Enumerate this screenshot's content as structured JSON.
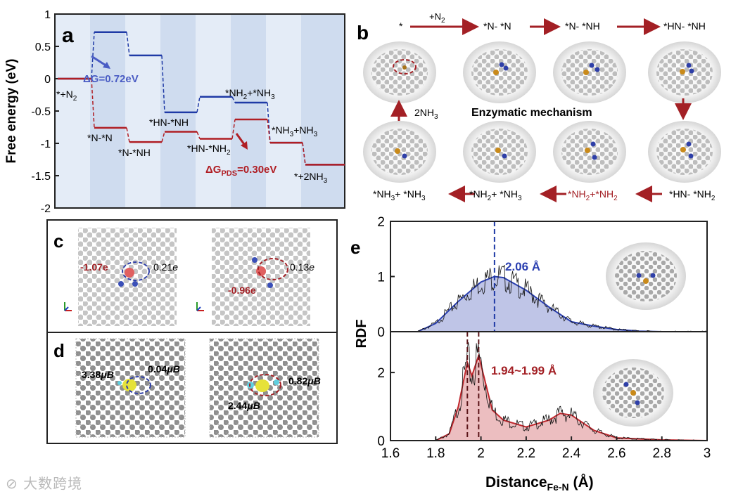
{
  "watermark": "⊘ 大数跨境",
  "panel_a": {
    "label": "a",
    "ylabel": "Free energy (eV)",
    "yticks": [
      "1",
      "0.5",
      "0",
      "-0.5",
      "-1",
      "-1.5",
      "-2"
    ],
    "annotations": {
      "dG_blue": "ΔG=0.72eV",
      "dG_red_main": "ΔG",
      "dG_red_sub": "PDS",
      "dG_red_rest": "=0.30eV"
    },
    "state_labels": {
      "start": "*+N",
      "start_sub": "2",
      "nn": "*N-*N",
      "nnh": "*N-*NH",
      "hnnh": "*HN-*NH",
      "hnnh2": "*HN-*NH",
      "hnnh2_sub": "2",
      "nh2nh3": "*NH",
      "nh2nh3_sub": "2",
      "nh2nh3_rest": "+*NH",
      "nh2nh3_sub2": "3",
      "nh3nh3": "*NH",
      "nh3nh3_sub": "3",
      "nh3nh3_rest": "+NH",
      "nh3nh3_sub2": "3",
      "end": "*+2NH",
      "end_sub": "3"
    },
    "chart_data": {
      "type": "line",
      "title": "",
      "xlabel": "",
      "ylabel": "Free energy (eV)",
      "ylim": [
        -2,
        1
      ],
      "series": [
        {
          "name": "dissociative pathway (blue)",
          "color": "#1f3aa6",
          "values": [
            0,
            0.72,
            0.36,
            -0.52,
            -0.28,
            -0.37,
            -0.99,
            -1.33
          ]
        },
        {
          "name": "enzymatic pathway (red)",
          "color": "#b01e24",
          "values": [
            0,
            -0.76,
            -0.98,
            -0.82,
            -0.93,
            -0.63,
            -0.99,
            -1.33
          ]
        }
      ]
    }
  },
  "panel_b": {
    "label": "b",
    "top_states": [
      "*",
      "*N- *N",
      "*N- *NH",
      "*HN- *NH"
    ],
    "n2_arrow": "+N",
    "n2_sub": "2",
    "release": "2NH",
    "release_sub": "3",
    "mechanism": "Enzymatic mechanism",
    "bottom_states": {
      "s1a": "*NH",
      "s1a_sub": "3",
      "s1b": "+ *NH",
      "s1b_sub": "3",
      "s2a": "*NH",
      "s2a_sub": "2",
      "s2b": "+ *NH",
      "s2b_sub": "3",
      "s3a": "*NH",
      "s3a_sub": "2",
      "s3b": "+*NH",
      "s3b_sub": "2",
      "s4a": "*HN- *NH",
      "s4a_sub": "2"
    }
  },
  "panel_c": {
    "label": "c",
    "left_q1": "-1.07e",
    "left_q2": "0.21",
    "right_q1": "0.13",
    "right_q2": "-0.96e",
    "e_unit": "e"
  },
  "panel_d": {
    "label": "d",
    "left_m1": "3.38",
    "left_m2": "0.04",
    "right_m1": "0.82",
    "right_m2": "2.44",
    "mu_unit": "μB"
  },
  "panel_e": {
    "label": "e",
    "ylabel": "RDF",
    "xlabel_main": "Distance",
    "xlabel_sub": "Fe-N",
    "xlabel_unit": " (Å)",
    "top_peak_label": "2.06 Å",
    "bottom_peak_label": "1.94~1.99 Å",
    "top_yticks": [
      "0",
      "1",
      "2"
    ],
    "bottom_yticks": [
      "0",
      "2"
    ],
    "xticks": [
      "1.6",
      "1.8",
      "2",
      "2.2",
      "2.4",
      "2.6",
      "2.8",
      "3"
    ],
    "chart_data": [
      {
        "type": "area",
        "name": "Fe-N RDF (dissociative)",
        "color": "#2a3fb0",
        "xlim": [
          1.6,
          3.0
        ],
        "ylim": [
          0,
          2
        ],
        "x": [
          1.72,
          1.8,
          1.9,
          2.0,
          2.06,
          2.1,
          2.2,
          2.3,
          2.4,
          2.5,
          2.6,
          2.7,
          2.8,
          3.0
        ],
        "y": [
          0.0,
          0.15,
          0.55,
          0.9,
          1.0,
          0.98,
          0.75,
          0.45,
          0.18,
          0.1,
          0.04,
          0.01,
          0.0,
          0.0
        ],
        "peak_lines": [
          2.06
        ]
      },
      {
        "type": "area",
        "name": "Fe-N RDF (enzymatic)",
        "color": "#c0282e",
        "xlim": [
          1.6,
          3.0
        ],
        "ylim": [
          0,
          3.2
        ],
        "x": [
          1.8,
          1.86,
          1.9,
          1.94,
          1.96,
          1.99,
          2.02,
          2.05,
          2.1,
          2.2,
          2.3,
          2.35,
          2.4,
          2.5,
          2.6,
          2.8,
          3.0
        ],
        "y": [
          0.0,
          0.2,
          1.0,
          2.3,
          1.9,
          2.5,
          1.7,
          0.9,
          0.6,
          0.4,
          0.6,
          0.8,
          0.75,
          0.3,
          0.08,
          0.02,
          0.0
        ],
        "peak_lines": [
          1.94,
          1.99
        ]
      }
    ]
  }
}
